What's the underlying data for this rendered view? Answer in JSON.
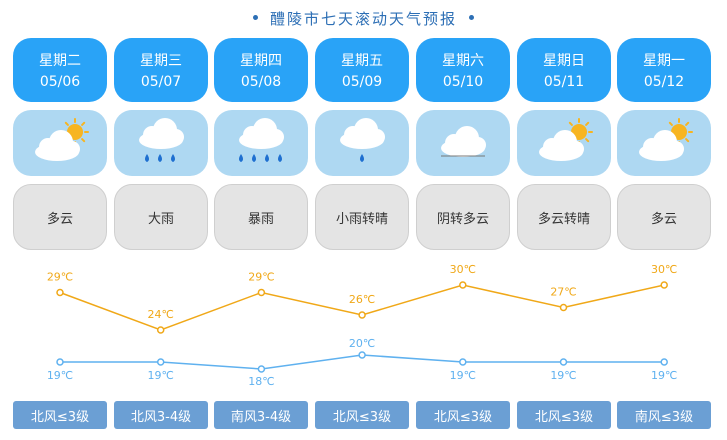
{
  "title": "醴陵市七天滚动天气预报",
  "colors": {
    "day_card": "#29a3f7",
    "icon_card": "#aed8f2",
    "desc_card": "#e4e4e4",
    "wind_card": "#6b9fd4",
    "high_line": "#f0a818",
    "low_line": "#5fb1ef"
  },
  "days": [
    {
      "weekday": "星期二",
      "date": "05/06",
      "weather": "多云",
      "icon": "partly-cloudy-icon",
      "high": "29℃",
      "low": "19℃",
      "wind": "北风≤3级"
    },
    {
      "weekday": "星期三",
      "date": "05/07",
      "weather": "大雨",
      "icon": "heavy-rain-icon",
      "high": "24℃",
      "low": "19℃",
      "wind": "北风3-4级"
    },
    {
      "weekday": "星期四",
      "date": "05/08",
      "weather": "暴雨",
      "icon": "rainstorm-icon",
      "high": "29℃",
      "low": "18℃",
      "wind": "南风3-4级"
    },
    {
      "weekday": "星期五",
      "date": "05/09",
      "weather": "小雨转晴",
      "icon": "light-rain-icon",
      "high": "26℃",
      "low": "20℃",
      "wind": "北风≤3级"
    },
    {
      "weekday": "星期六",
      "date": "05/10",
      "weather": "阴转多云",
      "icon": "overcast-icon",
      "high": "30℃",
      "low": "19℃",
      "wind": "北风≤3级"
    },
    {
      "weekday": "星期日",
      "date": "05/11",
      "weather": "多云转晴",
      "icon": "partly-cloudy-icon",
      "high": "27℃",
      "low": "19℃",
      "wind": "北风≤3级"
    },
    {
      "weekday": "星期一",
      "date": "05/12",
      "weather": "多云",
      "icon": "partly-cloudy-icon",
      "high": "30℃",
      "low": "19℃",
      "wind": "南风≤3级"
    }
  ],
  "chart_data": {
    "type": "line",
    "categories": [
      "05/06",
      "05/07",
      "05/08",
      "05/09",
      "05/10",
      "05/11",
      "05/12"
    ],
    "series": [
      {
        "values": [
          29,
          24,
          29,
          26,
          30,
          27,
          30
        ]
      },
      {
        "values": [
          19,
          19,
          18,
          20,
          19,
          19,
          19
        ]
      }
    ]
  }
}
